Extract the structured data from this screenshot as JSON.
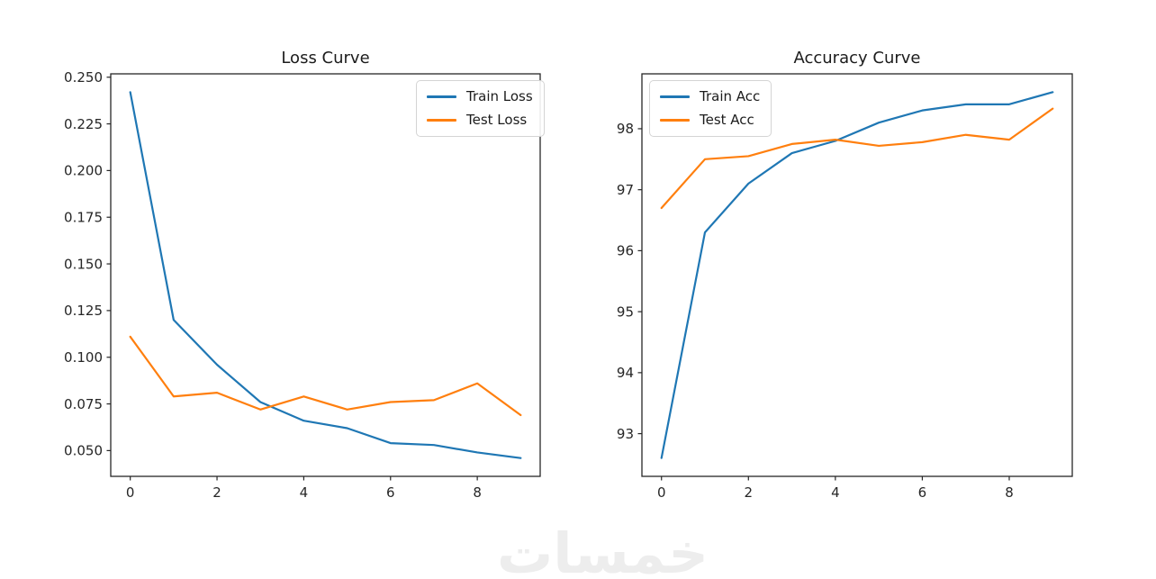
{
  "chart_data": [
    {
      "type": "line",
      "title": "Loss Curve",
      "x": [
        0,
        1,
        2,
        3,
        4,
        5,
        6,
        7,
        8,
        9
      ],
      "series": [
        {
          "name": "Train Loss",
          "color": "#1f77b4",
          "values": [
            0.242,
            0.12,
            0.096,
            0.076,
            0.066,
            0.062,
            0.054,
            0.053,
            0.049,
            0.046
          ]
        },
        {
          "name": "Test Loss",
          "color": "#ff7f0e",
          "values": [
            0.111,
            0.079,
            0.081,
            0.072,
            0.079,
            0.072,
            0.076,
            0.077,
            0.086,
            0.069
          ]
        }
      ],
      "xticks": [
        0,
        2,
        4,
        6,
        8
      ],
      "yticks": [
        0.05,
        0.075,
        0.1,
        0.125,
        0.15,
        0.175,
        0.2,
        0.225,
        0.25
      ],
      "ytick_decimals": 3,
      "xlim": [
        -0.45,
        9.45
      ],
      "ylim": [
        0.0362,
        0.2518
      ],
      "grid": false,
      "legend_position": "upper-right"
    },
    {
      "type": "line",
      "title": "Accuracy Curve",
      "x": [
        0,
        1,
        2,
        3,
        4,
        5,
        6,
        7,
        8,
        9
      ],
      "series": [
        {
          "name": "Train Acc",
          "color": "#1f77b4",
          "values": [
            92.6,
            96.3,
            97.1,
            97.6,
            97.8,
            98.1,
            98.3,
            98.4,
            98.4,
            98.6
          ]
        },
        {
          "name": "Test Acc",
          "color": "#ff7f0e",
          "values": [
            96.7,
            97.5,
            97.55,
            97.75,
            97.82,
            97.72,
            97.78,
            97.9,
            97.82,
            98.33
          ]
        }
      ],
      "xticks": [
        0,
        2,
        4,
        6,
        8
      ],
      "yticks": [
        93,
        94,
        95,
        96,
        97,
        98
      ],
      "ytick_decimals": 0,
      "xlim": [
        -0.45,
        9.45
      ],
      "ylim": [
        92.3,
        98.9
      ],
      "grid": false,
      "legend_position": "upper-left"
    }
  ],
  "watermark": {
    "text": "خمسات",
    "color": "#ededed"
  }
}
